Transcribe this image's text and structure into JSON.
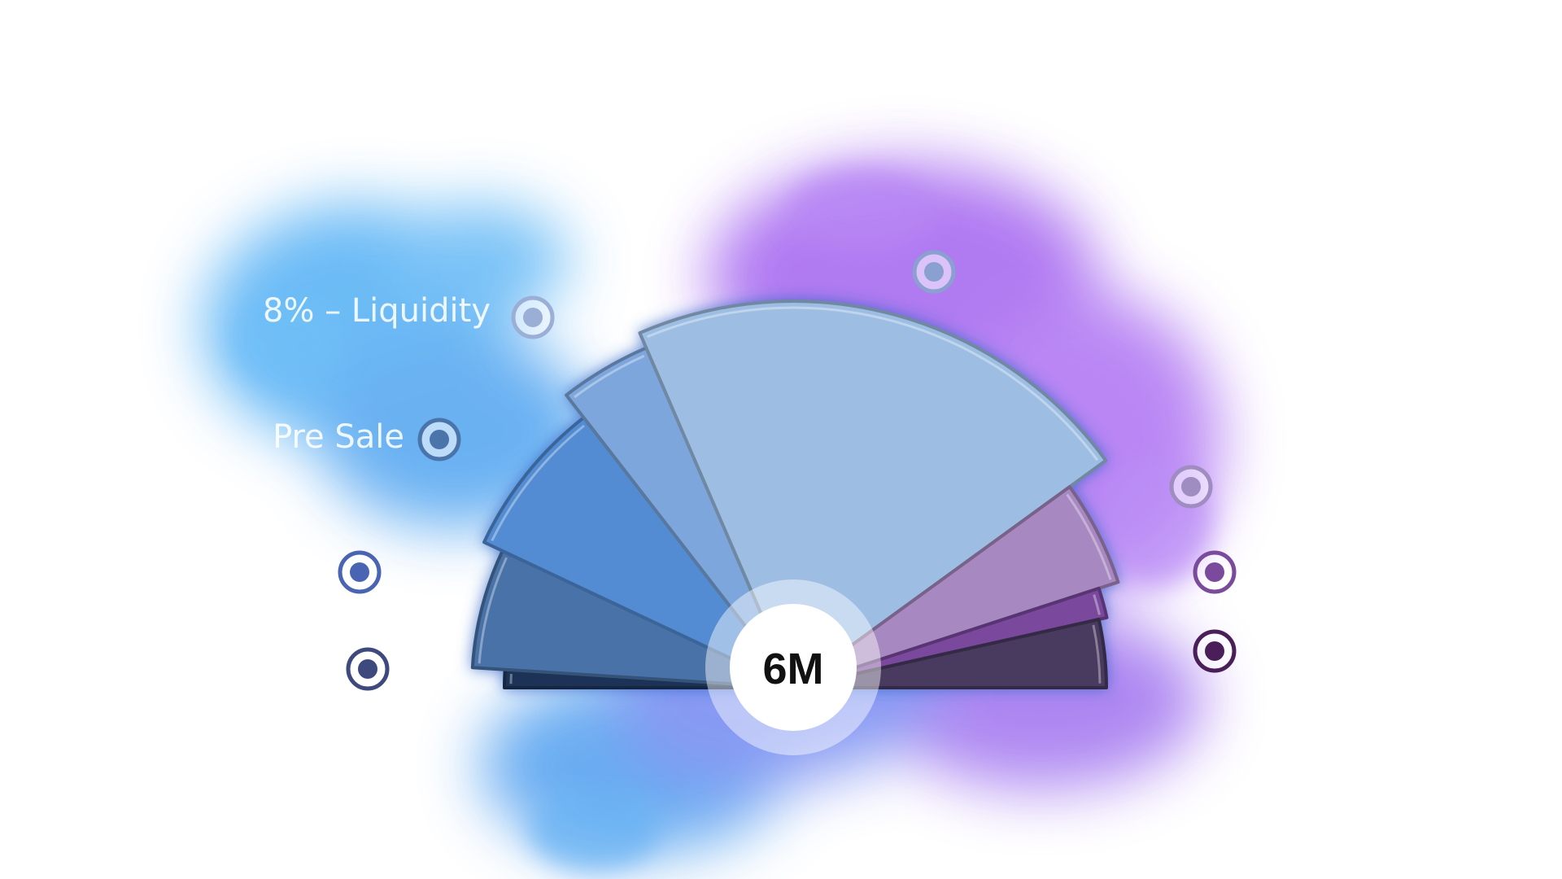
{
  "chart_data": {
    "type": "pie",
    "variant": "half-donut fan (slices of varying radius)",
    "center_label": "6M",
    "slices": [
      {
        "order": 1,
        "label": "",
        "value": 2,
        "color": "#1c3357"
      },
      {
        "order": 2,
        "label": "",
        "value": 12,
        "color": "#4a72a8"
      },
      {
        "order": 3,
        "label": "Pre Sale",
        "value": 15,
        "color": "#528cd3"
      },
      {
        "order": 4,
        "label": "8% – Liquidity",
        "value": 8,
        "color": "#7da7dc"
      },
      {
        "order": 5,
        "label": "",
        "value": 43,
        "color": "#9dbde3"
      },
      {
        "order": 6,
        "label": "",
        "value": 10,
        "color": "#a888c0"
      },
      {
        "order": 7,
        "label": "",
        "value": 3,
        "color": "#7a4a9e"
      },
      {
        "order": 8,
        "label": "",
        "value": 7,
        "color": "#4a3a5e"
      }
    ],
    "marker_colors": [
      "#3e4a7e",
      "#4a64b4",
      "#4a74aa",
      "#9aaed6",
      "#8aa0d0",
      "#9f8cc0",
      "#7a4a9c",
      "#4a1e58"
    ]
  }
}
